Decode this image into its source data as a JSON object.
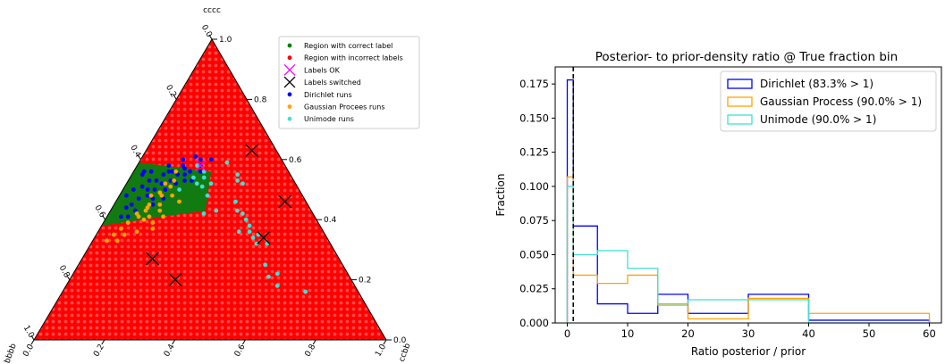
{
  "chart_data": [
    {
      "type": "scatter",
      "subtype": "ternary",
      "title": "",
      "axis_labels": {
        "top": "cccc",
        "bottom_left": "bbbb",
        "bottom_right": "ccbb"
      },
      "ticks": [
        "0.0",
        "0.2",
        "0.4",
        "0.6",
        "0.8",
        "1.0"
      ],
      "legend_placement": "top-right",
      "region_colors": {
        "correct": "#117a11",
        "incorrect": "#ff0000"
      },
      "legend": [
        {
          "label": "Region with correct label",
          "marker": "dot",
          "color": "#008000"
        },
        {
          "label": "Region with incorrect labels",
          "marker": "dot",
          "color": "#ff0000"
        },
        {
          "label": "Labels OK",
          "marker": "x",
          "color": "#ff00ff"
        },
        {
          "label": "Labels switched",
          "marker": "x",
          "color": "#000000"
        },
        {
          "label": "Dirichlet runs",
          "marker": "dot",
          "color": "#0000ff"
        },
        {
          "label": "Gaussian Procees runs",
          "marker": "dot",
          "color": "#ffa500"
        },
        {
          "label": "Unimode runs",
          "marker": "dot",
          "color": "#40e0d0"
        }
      ],
      "correct_region": [
        [
          0.0,
          0.38
        ],
        [
          0.0,
          0.59
        ],
        [
          0.22,
          0.56
        ],
        [
          0.27,
          0.43
        ]
      ],
      "labels_ok": [
        [
          0.18,
          0.58
        ]
      ],
      "labels_switched": [
        [
          0.48,
          0.34
        ],
        [
          0.48,
          0.46
        ],
        [
          0.3,
          0.2
        ],
        [
          0.2,
          0.27
        ],
        [
          0.3,
          0.63
        ]
      ],
      "series": [
        {
          "name": "Dirichlet runs",
          "color": "#0000ff",
          "points": [
            [
              0.18,
              0.58
            ],
            [
              0.17,
              0.6
            ],
            [
              0.14,
              0.57
            ],
            [
              0.13,
              0.55
            ],
            [
              0.12,
              0.53
            ],
            [
              0.15,
              0.55
            ],
            [
              0.16,
              0.56
            ],
            [
              0.13,
              0.58
            ],
            [
              0.11,
              0.56
            ],
            [
              0.1,
              0.52
            ],
            [
              0.09,
              0.55
            ],
            [
              0.09,
              0.5
            ],
            [
              0.08,
              0.48
            ],
            [
              0.1,
              0.47
            ],
            [
              0.12,
              0.5
            ],
            [
              0.14,
              0.52
            ],
            [
              0.16,
              0.5
            ],
            [
              0.18,
              0.53
            ],
            [
              0.19,
              0.56
            ],
            [
              0.07,
              0.5
            ],
            [
              0.06,
              0.47
            ],
            [
              0.05,
              0.45
            ],
            [
              0.06,
              0.53
            ],
            [
              0.05,
              0.56
            ],
            [
              0.03,
              0.55
            ],
            [
              0.03,
              0.5
            ],
            [
              0.02,
              0.48
            ],
            [
              0.04,
              0.44
            ],
            [
              0.07,
              0.43
            ],
            [
              0.11,
              0.45
            ],
            [
              0.13,
              0.47
            ],
            [
              0.2,
              0.6
            ],
            [
              0.15,
              0.61
            ],
            [
              0.09,
              0.58
            ],
            [
              0.12,
              0.6
            ],
            [
              0.08,
              0.53
            ],
            [
              0.03,
              0.56
            ],
            [
              0.1,
              0.56
            ],
            [
              0.16,
              0.53
            ],
            [
              0.05,
              0.51
            ],
            [
              0.04,
              0.41
            ],
            [
              0.06,
              0.41
            ]
          ]
        },
        {
          "name": "Gaussian Procees runs",
          "color": "#ffa500",
          "points": [
            [
              0.07,
              0.33
            ],
            [
              0.05,
              0.35
            ],
            [
              0.04,
              0.33
            ],
            [
              0.07,
              0.39
            ],
            [
              0.08,
              0.42
            ],
            [
              0.1,
              0.43
            ],
            [
              0.11,
              0.4
            ],
            [
              0.1,
              0.45
            ],
            [
              0.12,
              0.48
            ],
            [
              0.13,
              0.45
            ],
            [
              0.14,
              0.43
            ],
            [
              0.15,
              0.48
            ],
            [
              0.13,
              0.51
            ],
            [
              0.11,
              0.52
            ],
            [
              0.12,
              0.56
            ],
            [
              0.1,
              0.44
            ],
            [
              0.09,
              0.48
            ],
            [
              0.16,
              0.41
            ],
            [
              0.15,
              0.37
            ],
            [
              0.08,
              0.35
            ],
            [
              0.14,
              0.39
            ],
            [
              0.18,
              0.46
            ],
            [
              0.06,
              0.37
            ],
            [
              0.11,
              0.36
            ],
            [
              0.12,
              0.41
            ],
            [
              0.11,
              0.49
            ],
            [
              0.13,
              0.53
            ],
            [
              0.09,
              0.41
            ]
          ]
        },
        {
          "name": "Unimode runs",
          "color": "#40e0d0",
          "points": [
            [
              0.69,
              0.16
            ],
            [
              0.6,
              0.18
            ],
            [
              0.58,
              0.22
            ],
            [
              0.56,
              0.21
            ],
            [
              0.53,
              0.25
            ],
            [
              0.5,
              0.32
            ],
            [
              0.47,
              0.32
            ],
            [
              0.46,
              0.35
            ],
            [
              0.45,
              0.34
            ],
            [
              0.43,
              0.36
            ],
            [
              0.42,
              0.38
            ],
            [
              0.4,
              0.36
            ],
            [
              0.4,
              0.4
            ],
            [
              0.38,
              0.42
            ],
            [
              0.36,
              0.43
            ],
            [
              0.34,
              0.46
            ],
            [
              0.33,
              0.52
            ],
            [
              0.31,
              0.53
            ],
            [
              0.3,
              0.55
            ],
            [
              0.3,
              0.43
            ],
            [
              0.25,
              0.48
            ],
            [
              0.24,
              0.52
            ],
            [
              0.22,
              0.51
            ],
            [
              0.2,
              0.52
            ],
            [
              0.18,
              0.54
            ],
            [
              0.27,
              0.42
            ],
            [
              0.25,
              0.59
            ],
            [
              0.2,
              0.56
            ],
            [
              0.17,
              0.58
            ],
            [
              0.16,
              0.5
            ],
            [
              0.21,
              0.54
            ]
          ]
        }
      ]
    },
    {
      "type": "line",
      "subtype": "step-histogram",
      "title": "Posterior- to prior-density ratio @ True fraction bin",
      "xlabel": "Ratio posterior / prior",
      "ylabel": "Fraction",
      "xlim": [
        -2,
        62
      ],
      "ylim": [
        0,
        0.1875
      ],
      "xticks": [
        0,
        10,
        20,
        30,
        40,
        50,
        60
      ],
      "yticks": [
        0.0,
        0.025,
        0.05,
        0.075,
        0.1,
        0.125,
        0.15,
        0.175
      ],
      "ytick_labels": [
        "0.000",
        "0.025",
        "0.050",
        "0.075",
        "0.100",
        "0.125",
        "0.150",
        "0.175"
      ],
      "grid": false,
      "legend_placement": "top-right",
      "vline_x": 1,
      "bin_edges": [
        0,
        1,
        5,
        10,
        15,
        20,
        30,
        40,
        60
      ],
      "series": [
        {
          "name": "Dirichlet (83.3% > 1)",
          "color": "#0000ff",
          "values": [
            0.178,
            0.071,
            0.014,
            0.007,
            0.021,
            0.007,
            0.021,
            0.002
          ]
        },
        {
          "name": "Gaussian Process (90.0% > 1)",
          "color": "#ffa500",
          "values": [
            0.107,
            0.035,
            0.029,
            0.035,
            0.013,
            0.003,
            0.018,
            0.007
          ]
        },
        {
          "name": "Unimode (90.0% > 1)",
          "color": "#40e0d0",
          "values": [
            0.1,
            0.05,
            0.053,
            0.04,
            0.014,
            0.017,
            0.017,
            0.0
          ]
        }
      ]
    }
  ]
}
